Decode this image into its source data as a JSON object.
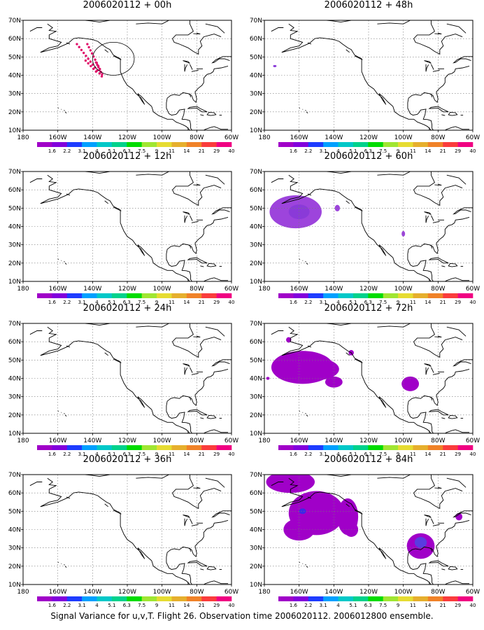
{
  "footer": "Signal Variance for u,v,T. Flight 26. Observation time 2006020112. 2006012800 ensemble.",
  "chart_data": [
    {
      "type": "heatmap",
      "title": "2006020112 + 00h",
      "features": [
        "observation-track",
        "observation-circle"
      ]
    },
    {
      "type": "heatmap",
      "title": "2006020112 + 12h",
      "features": []
    },
    {
      "type": "heatmap",
      "title": "2006020112 + 24h",
      "features": []
    },
    {
      "type": "heatmap",
      "title": "2006020112 + 36h",
      "features": []
    },
    {
      "type": "heatmap",
      "title": "2006020112 + 48h",
      "features": []
    },
    {
      "type": "heatmap",
      "title": "2006020112 + 60h",
      "features": []
    },
    {
      "type": "heatmap",
      "title": "2006020112 + 72h",
      "features": []
    },
    {
      "type": "heatmap",
      "title": "2006020112 + 84h",
      "features": []
    }
  ],
  "shared_axes": {
    "x_ticks": [
      "180",
      "160W",
      "140W",
      "120W",
      "100W",
      "80W",
      "60W"
    ],
    "y_ticks": [
      "10N",
      "20N",
      "30N",
      "40N",
      "50N",
      "60N",
      "70N"
    ],
    "xlim": [
      -180,
      -60
    ],
    "ylim": [
      10,
      70
    ],
    "grid": true,
    "colorbar_labels": [
      "1.6",
      "2.2",
      "3.1",
      "4",
      "5.1",
      "6.3",
      "7.5",
      "9",
      "11",
      "14",
      "21",
      "29",
      "40"
    ],
    "colorbar_colors": [
      "#a000c8",
      "#8200dc",
      "#1e3cff",
      "#00a0ff",
      "#00c8c8",
      "#00d28c",
      "#00dc00",
      "#a0e632",
      "#e6dc32",
      "#e6af2d",
      "#f08228",
      "#fa3c3c",
      "#f00082"
    ]
  }
}
